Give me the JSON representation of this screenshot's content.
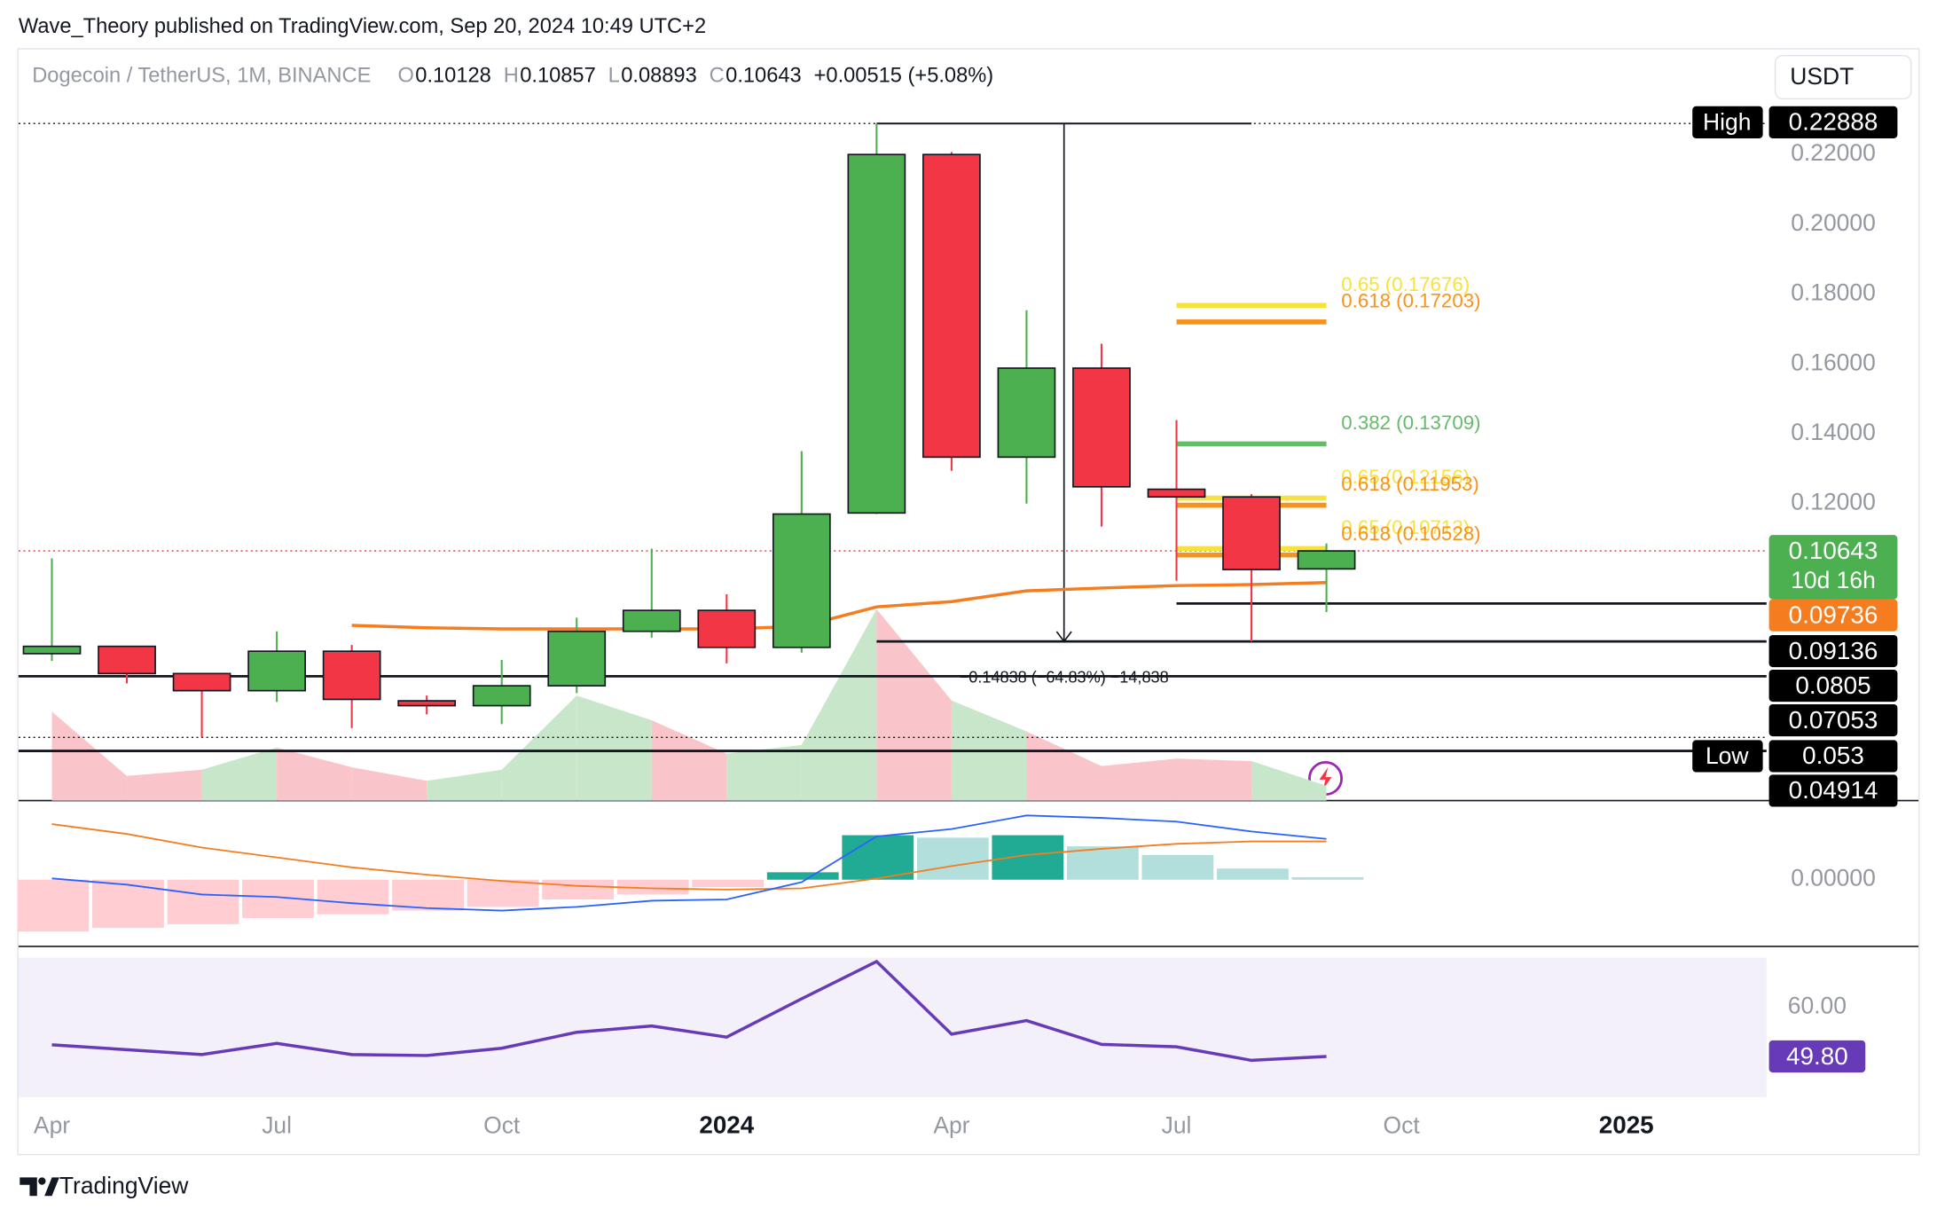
{
  "header": {
    "publisher": "Wave_Theory published on TradingView.com, Sep 20, 2024 10:49 UTC+2",
    "footer": "TradingView",
    "currency": "USDT"
  },
  "chart_data": {
    "type": "candlestick",
    "symbol": "Dogecoin / TetherUS, 1M, BINANCE",
    "ohlc_legend": [
      {
        "key": "O",
        "value": 0.10128
      },
      {
        "key": "H",
        "value": 0.10857
      },
      {
        "key": "L",
        "value": 0.08893
      },
      {
        "key": "C",
        "value": 0.10643
      }
    ],
    "change": "+0.00515 (+5.08%)",
    "x": [
      0,
      1,
      2,
      3,
      4,
      5,
      6,
      7,
      8,
      9,
      10,
      11,
      12,
      13,
      14,
      15,
      16,
      17
    ],
    "open": [
      0.077,
      0.0791,
      0.0713,
      0.0664,
      0.0777,
      0.0635,
      0.0621,
      0.0678,
      0.0834,
      0.0894,
      0.0788,
      0.1173,
      0.22,
      0.1333,
      0.1588,
      0.1241,
      0.1219,
      0.10128
    ],
    "high": [
      0.1043,
      0.0791,
      0.0713,
      0.0834,
      0.0795,
      0.065,
      0.0752,
      0.0873,
      0.1071,
      0.094,
      0.135,
      0.22888,
      0.2207,
      0.1754,
      0.1658,
      0.1439,
      0.1227,
      0.10857
    ],
    "low": [
      0.0749,
      0.0685,
      0.053,
      0.0632,
      0.0557,
      0.0596,
      0.0568,
      0.0657,
      0.0816,
      0.0742,
      0.0773,
      0.117,
      0.1294,
      0.12,
      0.1134,
      0.0979,
      0.0805,
      0.08893
    ],
    "close": [
      0.0791,
      0.0713,
      0.0664,
      0.0777,
      0.0639,
      0.0621,
      0.0678,
      0.0834,
      0.0894,
      0.0788,
      0.117,
      0.22,
      0.1333,
      0.1588,
      0.1248,
      0.1219,
      0.1011,
      0.10643
    ],
    "up_color": "#4caf50",
    "down_color": "#f23645",
    "xlim": [
      -0.445,
      22.87
    ],
    "xticks": [
      {
        "value": 0,
        "label": "Apr"
      },
      {
        "value": 3,
        "label": "Jul"
      },
      {
        "value": 6,
        "label": "Oct"
      },
      {
        "value": 9,
        "label": "2024"
      },
      {
        "value": 12,
        "label": "Apr"
      },
      {
        "value": 15,
        "label": "Jul"
      },
      {
        "value": 18,
        "label": "Oct"
      },
      {
        "value": 21,
        "label": "2025"
      }
    ],
    "ylim": [
      0.0349,
      0.2501
    ],
    "yticks": [
      {
        "value": 0.22,
        "label": "0.22000"
      },
      {
        "value": 0.2,
        "label": "0.20000"
      },
      {
        "value": 0.18,
        "label": "0.18000"
      },
      {
        "value": 0.16,
        "label": "0.16000"
      },
      {
        "value": 0.14,
        "label": "0.14000"
      },
      {
        "value": 0.12,
        "label": "0.12000"
      }
    ],
    "ma": {
      "color": "#f57c1f",
      "values": [
        null,
        null,
        null,
        null,
        0.0851,
        0.0844,
        0.0841,
        0.0841,
        0.0841,
        0.0841,
        0.0848,
        0.0904,
        0.0919,
        0.095,
        0.0958,
        0.0965,
        0.0968,
        0.09736
      ]
    },
    "volume": {
      "up_color": "#c8e6c9",
      "down_color": "#f9c5ca",
      "values": [
        72,
        20,
        25,
        43,
        27,
        16,
        25,
        85,
        65,
        38,
        45,
        155,
        81,
        56,
        28,
        34,
        32,
        12
      ]
    },
    "levels": [
      {
        "value": 0.22888,
        "tag": "High",
        "color": "#000000",
        "line": "dotted",
        "from": -0.445
      },
      {
        "value": 0.10643,
        "countdown": "10d 16h",
        "color": "#4caf50",
        "line": "dotted-red",
        "from": -0.445
      },
      {
        "value": 0.09736,
        "color": "#f57c1f",
        "line": "none",
        "from": 17
      },
      {
        "value": 0.09136,
        "color": "#000000",
        "line": "solid",
        "from": 15
      },
      {
        "value": 0.0805,
        "color": "#000000",
        "line": "solid",
        "from": 11
      },
      {
        "value": 0.07053,
        "color": "#000000",
        "line": "solid",
        "from": -0.445
      },
      {
        "value": 0.053,
        "tag": "Low",
        "color": "#000000",
        "line": "dotted",
        "from": -0.445
      },
      {
        "value": 0.04914,
        "color": "#000000",
        "line": "solid",
        "from": -0.445
      }
    ],
    "measure": {
      "label": "−0.14838 (−64.83%) −14,838",
      "at": 13.5
    },
    "fib_levels": [
      {
        "label": "0.65 (0.17676)",
        "value": 0.17676,
        "color": "#f5e33b"
      },
      {
        "label": "0.618 (0.17203)",
        "value": 0.17203,
        "color": "#f7931a"
      },
      {
        "label": "0.382 (0.13709)",
        "value": 0.13709,
        "color": "#66bb6a"
      },
      {
        "label": "0.65 (0.12156)",
        "value": 0.12156,
        "color": "#f5e33b"
      },
      {
        "label": "0.618 (0.11953)",
        "value": 0.11953,
        "color": "#f7931a"
      },
      {
        "label": "0.65 (0.10713)",
        "value": 0.10713,
        "color": "#f5e33b"
      },
      {
        "label": "0.618 (0.10528)",
        "value": 0.10528,
        "color": "#f7931a"
      }
    ],
    "macd": {
      "ylim": [
        -53,
        62
      ],
      "yticks": [
        {
          "value": 0,
          "label": "0.00000"
        }
      ],
      "histogram": [
        -42,
        -39,
        -36,
        -31,
        -28,
        -25,
        -22,
        -16,
        -12,
        -6,
        6,
        36,
        34,
        36,
        27,
        20,
        9,
        2
      ],
      "hist_colors": [
        "#ffcdd2",
        "#ffcdd2",
        "#ffcdd2",
        "#ffcdd2",
        "#ffcdd2",
        "#ffcdd2",
        "#ffcdd2",
        "#ffcdd2",
        "#ffcdd2",
        "#ffcdd2",
        "#22ab94",
        "#22ab94",
        "#b2dfdb",
        "#22ab94",
        "#b2dfdb",
        "#b2dfdb",
        "#b2dfdb",
        "#b2dfdb"
      ],
      "macd_line": {
        "color": "#2962ff",
        "values": [
          1,
          -4,
          -12,
          -14,
          -19,
          -23,
          -25,
          -22,
          -17,
          -16,
          -2,
          35,
          41,
          52,
          50,
          47,
          39,
          33
        ]
      },
      "signal_line": {
        "color": "#f57c1f",
        "values": [
          45,
          37,
          26,
          18,
          10,
          4,
          -1,
          -5,
          -7,
          -8,
          -7,
          1,
          11,
          20,
          25,
          29,
          31,
          31
        ]
      }
    },
    "rsi": {
      "ylim": [
        40.9,
        72
      ],
      "yticks": [
        {
          "value": 60,
          "label": "60.00"
        }
      ],
      "color": "#673ab7",
      "values": [
        52.2,
        51.2,
        50.2,
        52.5,
        50.2,
        50.0,
        51.5,
        54.8,
        56.1,
        53.8,
        61.7,
        69.4,
        54.4,
        57.2,
        52.3,
        51.8,
        49.0,
        49.8
      ],
      "value_labels": [
        null,
        null,
        null,
        null,
        null,
        null,
        null,
        null,
        null,
        null,
        null,
        null,
        null,
        null,
        null,
        null,
        null,
        "49.80"
      ]
    }
  }
}
